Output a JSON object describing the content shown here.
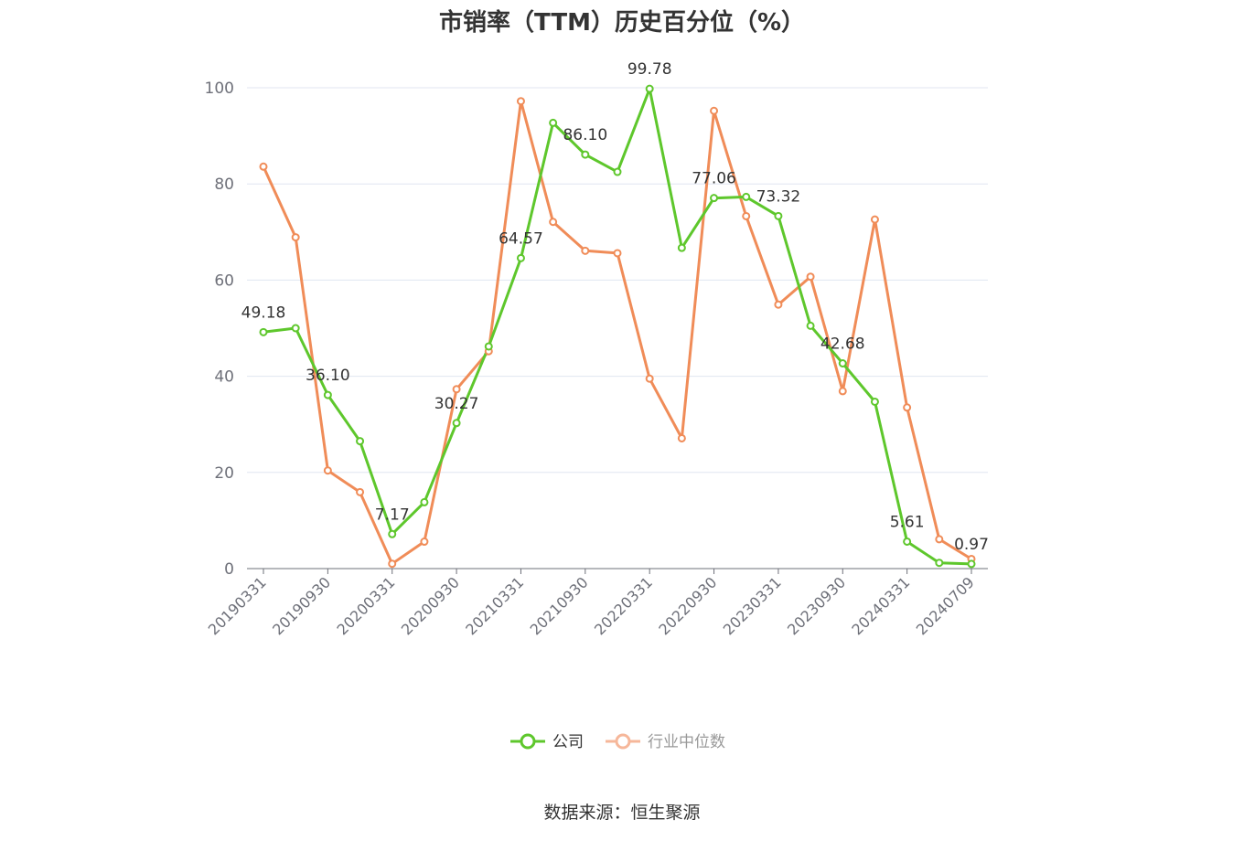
{
  "title": "市销率（TTM）历史百分位（%）",
  "source": "数据来源：恒生聚源",
  "colors": {
    "company": "#5ec72c",
    "industry": "#f08c58"
  },
  "chart_data": {
    "type": "line",
    "title": "市销率（TTM）历史百分位（%）",
    "ylim": [
      0,
      100
    ],
    "yticks": [
      0,
      20,
      40,
      60,
      80,
      100
    ],
    "grid": true,
    "legend": "bottom",
    "x": [
      "20190331",
      "20190630",
      "20190930",
      "20191231",
      "20200331",
      "20200630",
      "20200930",
      "20201231",
      "20210331",
      "20210630",
      "20210930",
      "20211231",
      "20220331",
      "20220630",
      "20220930",
      "20221231",
      "20230331",
      "20230630",
      "20230930",
      "20231231",
      "20240331",
      "20240630",
      "20240709"
    ],
    "x_tick_labels": [
      "20190331",
      "20190930",
      "20200331",
      "20200930",
      "20210331",
      "20210930",
      "20220331",
      "20220930",
      "20230331",
      "20230930",
      "20240331",
      "20240709"
    ],
    "series": [
      {
        "name": "公司",
        "color": "#5ec72c",
        "values": [
          49.18,
          50.0,
          36.1,
          26.5,
          7.17,
          13.8,
          30.27,
          46.2,
          64.57,
          92.7,
          86.1,
          82.5,
          99.78,
          66.7,
          77.06,
          77.3,
          73.32,
          50.5,
          42.68,
          34.7,
          5.61,
          1.2,
          0.97
        ],
        "labels": {
          "0": "49.18",
          "2": "36.10",
          "4": "7.17",
          "6": "30.27",
          "8": "64.57",
          "10": "86.10",
          "12": "99.78",
          "14": "77.06",
          "16": "73.32",
          "18": "42.68",
          "20": "5.61",
          "22": "0.97"
        }
      },
      {
        "name": "行业中位数",
        "color": "#f08c58",
        "values": [
          83.6,
          68.9,
          20.4,
          15.9,
          1.0,
          5.6,
          37.3,
          45.2,
          97.2,
          72.1,
          66.1,
          65.6,
          39.5,
          27.1,
          95.2,
          73.3,
          54.9,
          60.7,
          36.9,
          72.6,
          33.5,
          6.1,
          2.0
        ]
      }
    ]
  }
}
